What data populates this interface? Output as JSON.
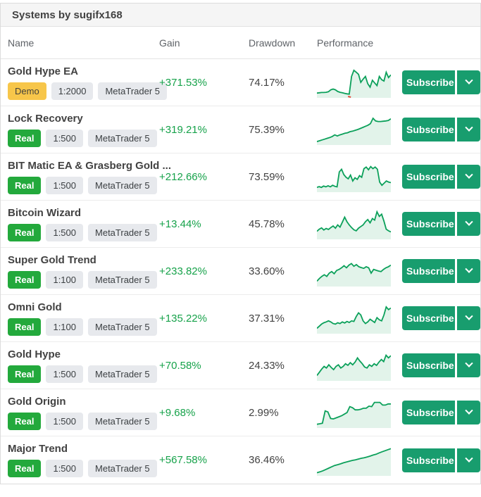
{
  "header": {
    "title": "Systems by sugifx168"
  },
  "columns": {
    "name": "Name",
    "gain": "Gain",
    "drawdown": "Drawdown",
    "performance": "Performance"
  },
  "actions": {
    "subscribe_label": "Subscribe",
    "dropdown_icon": "chevron-down-icon"
  },
  "colors": {
    "button_green": "#189d6e",
    "gain_green": "#16a24a",
    "real_badge_green": "#23a93c",
    "demo_badge_amber": "#f7c64a",
    "spark_line": "#0ba05a",
    "spark_fill": "#e2f3ea",
    "marker_red": "#e5493a"
  },
  "rows": [
    {
      "name": "Gold Hype EA",
      "account_type": "Demo",
      "leverage": "1:2000",
      "platform": "MetaTrader 5",
      "gain": "+371.53%",
      "drawdown": "74.17%",
      "spark": [
        0.1,
        0.11,
        0.12,
        0.12,
        0.13,
        0.15,
        0.22,
        0.25,
        0.22,
        0.16,
        0.13,
        0.11,
        0.09,
        0.07,
        0.06,
        0.72,
        0.95,
        0.88,
        0.8,
        0.5,
        0.62,
        0.72,
        0.45,
        0.32,
        0.58,
        0.48,
        0.38,
        0.72,
        0.6,
        0.55,
        0.88,
        0.68,
        0.78
      ],
      "spark_marker_x": 0.44
    },
    {
      "name": "Lock Recovery",
      "account_type": "Real",
      "leverage": "1:500",
      "platform": "MetaTrader 5",
      "gain": "+319.21%",
      "drawdown": "75.39%",
      "spark": [
        0.05,
        0.08,
        0.11,
        0.14,
        0.17,
        0.2,
        0.24,
        0.3,
        0.26,
        0.3,
        0.33,
        0.36,
        0.38,
        0.42,
        0.44,
        0.47,
        0.5,
        0.54,
        0.58,
        0.62,
        0.66,
        0.72,
        0.92,
        0.82,
        0.8,
        0.8,
        0.81,
        0.82,
        0.84,
        0.9
      ]
    },
    {
      "name": "BIT Matic EA & Grasberg Gold ...",
      "account_type": "Real",
      "leverage": "1:500",
      "platform": "MetaTrader 5",
      "gain": "+212.66%",
      "drawdown": "73.59%",
      "spark": [
        0.1,
        0.13,
        0.1,
        0.15,
        0.12,
        0.16,
        0.12,
        0.18,
        0.14,
        0.12,
        0.68,
        0.78,
        0.58,
        0.48,
        0.42,
        0.56,
        0.34,
        0.46,
        0.4,
        0.54,
        0.48,
        0.8,
        0.86,
        0.76,
        0.88,
        0.8,
        0.86,
        0.78,
        0.3,
        0.18,
        0.26,
        0.34,
        0.3,
        0.28
      ]
    },
    {
      "name": "Bitcoin Wizard",
      "account_type": "Real",
      "leverage": "1:500",
      "platform": "MetaTrader 5",
      "gain": "+13.44%",
      "drawdown": "45.78%",
      "spark": [
        0.22,
        0.3,
        0.35,
        0.27,
        0.33,
        0.29,
        0.36,
        0.42,
        0.34,
        0.46,
        0.38,
        0.56,
        0.75,
        0.58,
        0.46,
        0.36,
        0.28,
        0.24,
        0.34,
        0.4,
        0.46,
        0.58,
        0.66,
        0.54,
        0.7,
        0.64,
        0.95,
        0.78,
        0.86,
        0.6,
        0.3,
        0.24,
        0.2
      ]
    },
    {
      "name": "Super Gold Trend",
      "account_type": "Real",
      "leverage": "1:100",
      "platform": "MetaTrader 5",
      "gain": "+233.82%",
      "drawdown": "33.60%",
      "spark": [
        0.12,
        0.22,
        0.3,
        0.36,
        0.3,
        0.42,
        0.48,
        0.4,
        0.52,
        0.56,
        0.62,
        0.7,
        0.62,
        0.72,
        0.78,
        0.68,
        0.74,
        0.66,
        0.63,
        0.6,
        0.66,
        0.62,
        0.42,
        0.56,
        0.53,
        0.5,
        0.48,
        0.56,
        0.62,
        0.66,
        0.72
      ]
    },
    {
      "name": "Omni Gold",
      "account_type": "Real",
      "leverage": "1:100",
      "platform": "MetaTrader 5",
      "gain": "+135.22%",
      "drawdown": "37.31%",
      "spark": [
        0.12,
        0.2,
        0.28,
        0.33,
        0.36,
        0.4,
        0.36,
        0.3,
        0.28,
        0.33,
        0.3,
        0.36,
        0.32,
        0.38,
        0.34,
        0.4,
        0.38,
        0.56,
        0.7,
        0.62,
        0.4,
        0.3,
        0.36,
        0.46,
        0.4,
        0.34,
        0.52,
        0.44,
        0.4,
        0.62,
        0.92,
        0.82,
        0.88
      ]
    },
    {
      "name": "Gold Hype",
      "account_type": "Real",
      "leverage": "1:500",
      "platform": "MetaTrader 5",
      "gain": "+70.58%",
      "drawdown": "24.33%",
      "spark": [
        0.12,
        0.24,
        0.36,
        0.46,
        0.4,
        0.52,
        0.42,
        0.34,
        0.46,
        0.52,
        0.4,
        0.46,
        0.56,
        0.5,
        0.6,
        0.52,
        0.62,
        0.78,
        0.66,
        0.56,
        0.44,
        0.4,
        0.52,
        0.46,
        0.56,
        0.5,
        0.62,
        0.72,
        0.64,
        0.88,
        0.78,
        0.86
      ]
    },
    {
      "name": "Gold Origin",
      "account_type": "Real",
      "leverage": "1:500",
      "platform": "MetaTrader 5",
      "gain": "+9.68%",
      "drawdown": "2.99%",
      "spark": [
        0.06,
        0.08,
        0.1,
        0.56,
        0.52,
        0.28,
        0.26,
        0.3,
        0.34,
        0.38,
        0.44,
        0.5,
        0.72,
        0.68,
        0.6,
        0.6,
        0.62,
        0.66,
        0.66,
        0.74,
        0.72,
        0.88,
        0.88,
        0.88,
        0.78,
        0.78,
        0.82,
        0.82
      ]
    },
    {
      "name": "Major Trend",
      "account_type": "Real",
      "leverage": "1:500",
      "platform": "MetaTrader 5",
      "gain": "+567.58%",
      "drawdown": "36.46%",
      "spark": [
        0.04,
        0.07,
        0.11,
        0.16,
        0.21,
        0.26,
        0.31,
        0.34,
        0.37,
        0.41,
        0.44,
        0.47,
        0.5,
        0.52,
        0.55,
        0.58,
        0.6,
        0.63,
        0.66,
        0.7,
        0.73,
        0.78,
        0.82,
        0.86,
        0.9,
        0.94
      ]
    }
  ]
}
